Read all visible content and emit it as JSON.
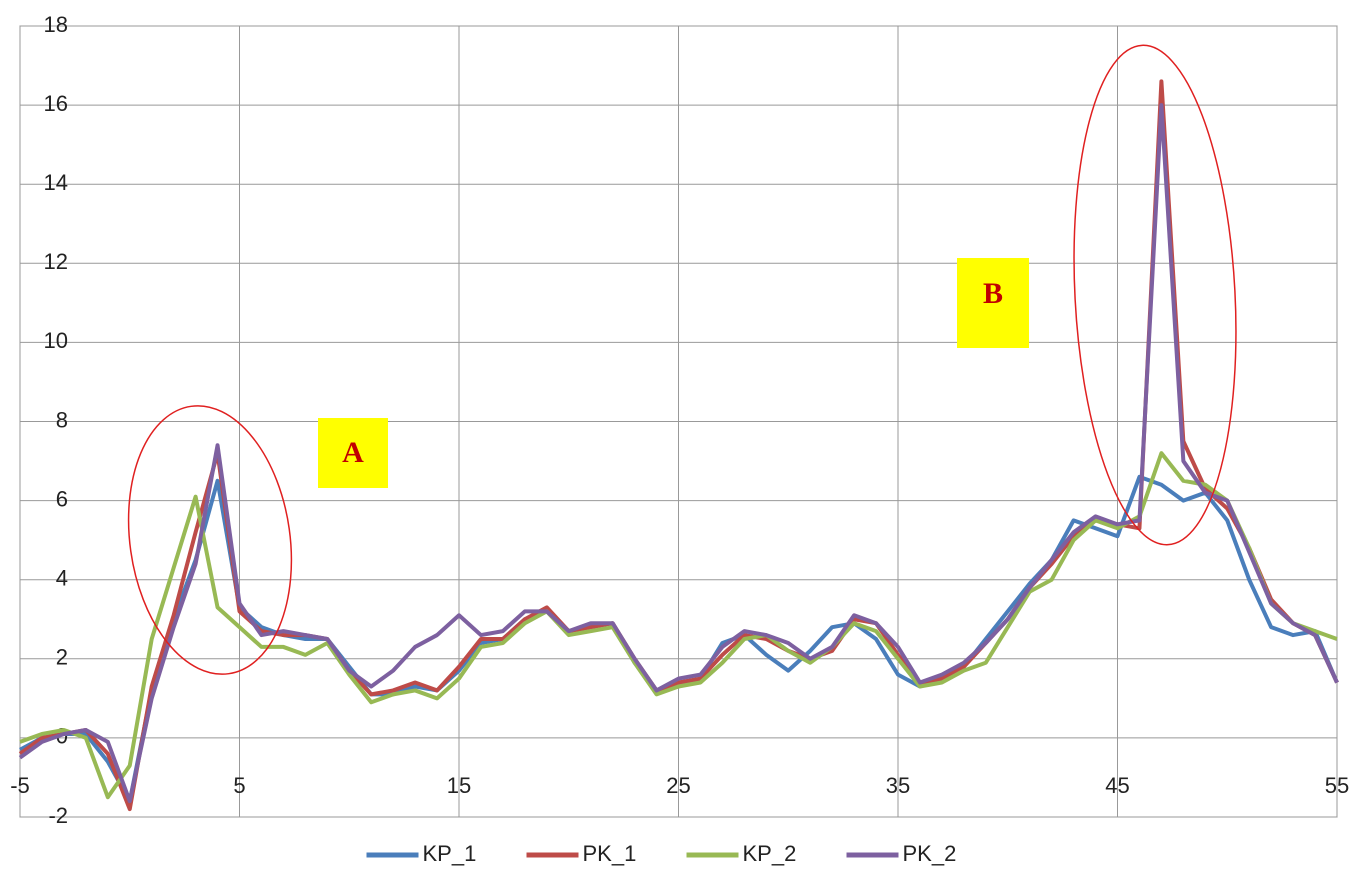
{
  "chart_data": {
    "type": "line",
    "x": [
      -5,
      -4,
      -3,
      -2,
      -1,
      0,
      1,
      2,
      3,
      4,
      5,
      6,
      7,
      8,
      9,
      10,
      11,
      12,
      13,
      14,
      15,
      16,
      17,
      18,
      19,
      20,
      21,
      22,
      23,
      24,
      25,
      26,
      27,
      28,
      29,
      30,
      31,
      32,
      33,
      34,
      35,
      36,
      37,
      38,
      39,
      40,
      41,
      42,
      43,
      44,
      45,
      46,
      47,
      48,
      49,
      50,
      51,
      52,
      53,
      54,
      55
    ],
    "series": [
      {
        "name": "KP_1",
        "color": "#4a7ebb",
        "values": [
          -0.3,
          0,
          0.1,
          0.1,
          -0.6,
          -1.6,
          1.2,
          3,
          4.5,
          6.5,
          3.3,
          2.8,
          2.6,
          2.5,
          2.5,
          1.8,
          1.1,
          1.1,
          1.3,
          1.2,
          1.7,
          2.4,
          2.5,
          3.0,
          3.2,
          2.7,
          2.8,
          2.9,
          1.9,
          1.2,
          1.3,
          1.5,
          2.4,
          2.6,
          2.1,
          1.7,
          2.2,
          2.8,
          2.9,
          2.5,
          1.6,
          1.3,
          1.5,
          1.8,
          2.5,
          3.2,
          3.9,
          4.5,
          5.5,
          5.3,
          5.1,
          6.6,
          6.4,
          6.0,
          6.2,
          5.5,
          4.0,
          2.8,
          2.6,
          2.7,
          1.4
        ]
      },
      {
        "name": "PK_1",
        "color": "#be4b48",
        "values": [
          -0.4,
          0,
          0.1,
          0.2,
          -0.4,
          -1.8,
          1.3,
          3.1,
          5.2,
          7.2,
          3.2,
          2.7,
          2.6,
          2.6,
          2.5,
          1.7,
          1.1,
          1.2,
          1.4,
          1.2,
          1.8,
          2.5,
          2.5,
          3.0,
          3.3,
          2.7,
          2.8,
          2.9,
          2.0,
          1.2,
          1.4,
          1.5,
          2.1,
          2.6,
          2.5,
          2.2,
          2.0,
          2.2,
          3.0,
          2.9,
          2.1,
          1.4,
          1.5,
          1.8,
          2.4,
          3.0,
          3.8,
          4.4,
          5.1,
          5.5,
          5.4,
          5.3,
          16.6,
          7.5,
          6.3,
          5.8,
          4.8,
          3.5,
          2.9,
          2.6,
          1.4
        ]
      },
      {
        "name": "KP_2",
        "color": "#98b954",
        "values": [
          -0.1,
          0.1,
          0.2,
          0,
          -1.5,
          -0.7,
          2.5,
          4.3,
          6.1,
          3.3,
          2.8,
          2.3,
          2.3,
          2.1,
          2.4,
          1.6,
          0.9,
          1.1,
          1.2,
          1.0,
          1.5,
          2.3,
          2.4,
          2.9,
          3.2,
          2.6,
          2.7,
          2.8,
          1.9,
          1.1,
          1.3,
          1.4,
          1.9,
          2.5,
          2.6,
          2.2,
          1.9,
          2.3,
          2.9,
          2.7,
          2.0,
          1.3,
          1.4,
          1.7,
          1.9,
          2.8,
          3.7,
          4.0,
          5.0,
          5.5,
          5.3,
          5.6,
          7.2,
          6.5,
          6.4,
          6.0,
          4.8,
          3.4,
          2.9,
          2.7,
          2.5
        ]
      },
      {
        "name": "PK_2",
        "color": "#7d60a0",
        "values": [
          -0.5,
          -0.1,
          0.1,
          0.2,
          -0.1,
          -1.6,
          1.0,
          2.8,
          4.4,
          7.4,
          3.4,
          2.6,
          2.7,
          2.6,
          2.5,
          1.7,
          1.3,
          1.7,
          2.3,
          2.6,
          3.1,
          2.6,
          2.7,
          3.2,
          3.2,
          2.7,
          2.9,
          2.9,
          2.0,
          1.2,
          1.5,
          1.6,
          2.3,
          2.7,
          2.6,
          2.4,
          2.0,
          2.3,
          3.1,
          2.9,
          2.3,
          1.4,
          1.6,
          1.9,
          2.4,
          3.0,
          3.8,
          4.5,
          5.2,
          5.6,
          5.4,
          5.5,
          16.0,
          7.0,
          6.2,
          6.0,
          4.7,
          3.4,
          2.9,
          2.6,
          1.4
        ]
      }
    ],
    "xlim": [
      -5,
      55
    ],
    "xticks": [
      -5,
      5,
      15,
      25,
      35,
      45,
      55
    ],
    "ylim": [
      -2,
      18
    ],
    "yticks": [
      -2,
      0,
      2,
      4,
      6,
      8,
      10,
      12,
      14,
      16,
      18
    ],
    "grid": true,
    "legend": "bottom",
    "annotations": [
      "A",
      "B"
    ]
  }
}
